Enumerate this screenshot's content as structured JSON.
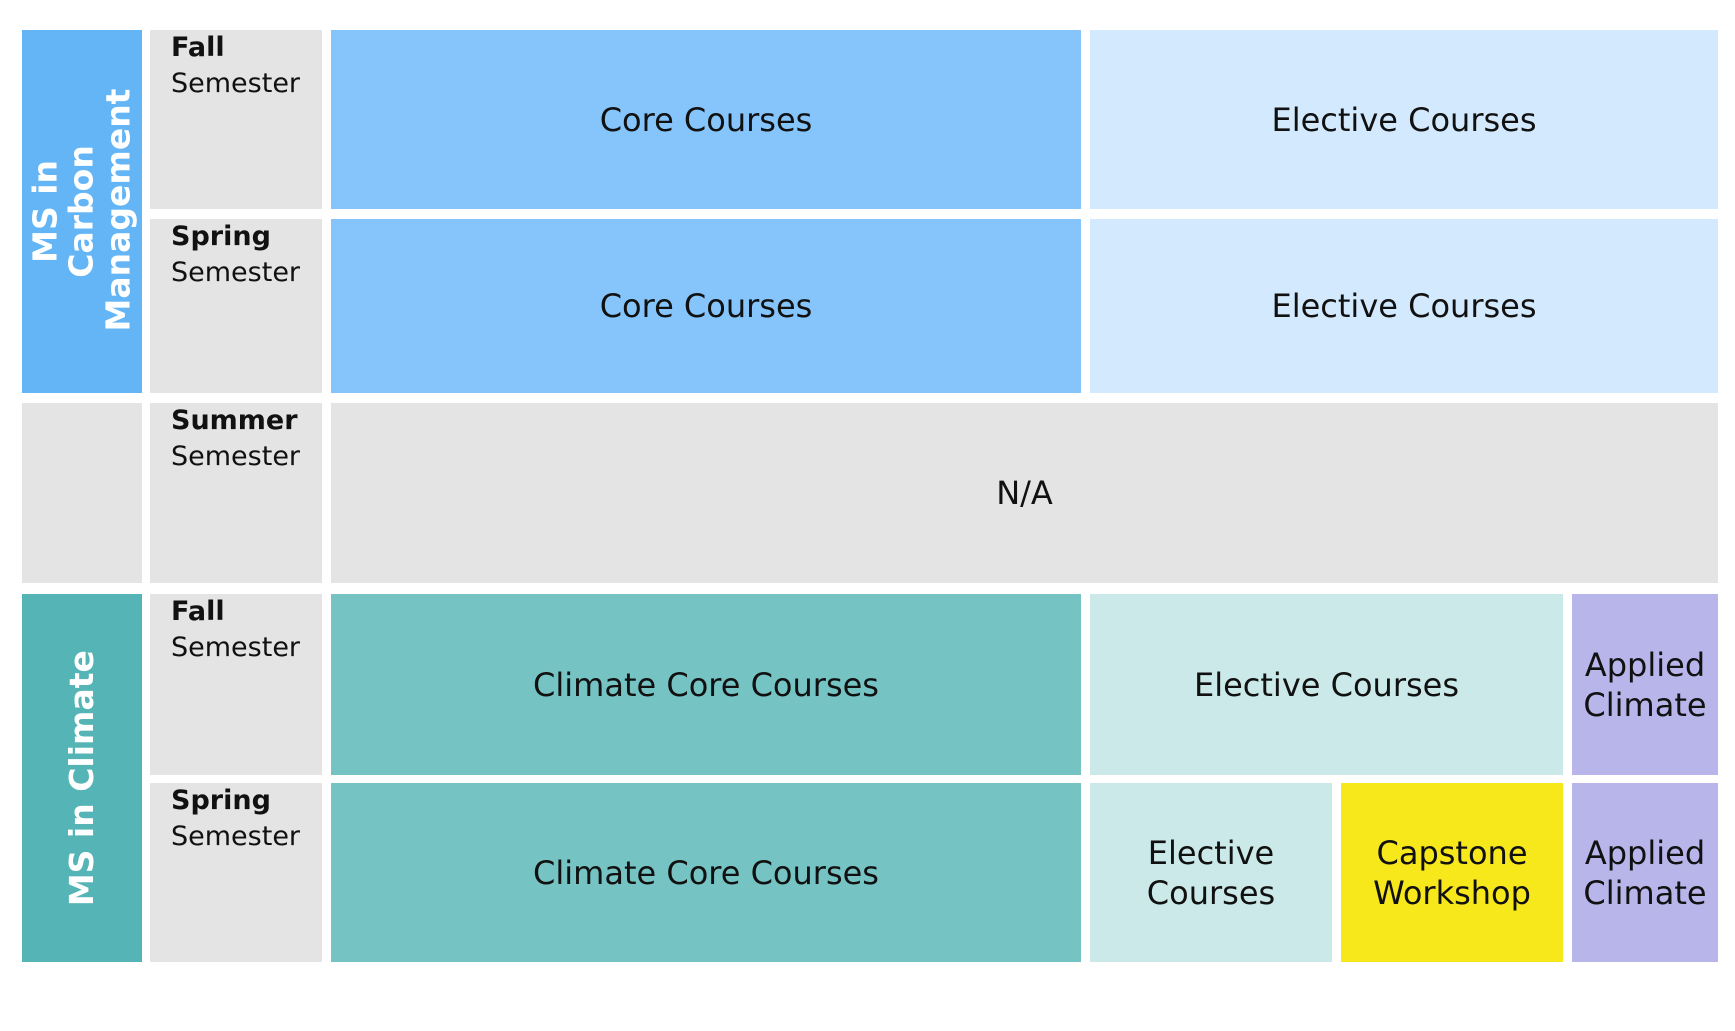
{
  "colors": {
    "carbon_program": "#64b5f6",
    "carbon_core": "#85c5fc",
    "carbon_elective": "#d3e9fd",
    "neutral": "#e4e4e4",
    "climate_program": "#55b4b5",
    "climate_core": "#76c3c4",
    "climate_elective": "#cae9e8",
    "applied": "#b8b5ea",
    "capstone": "#f7e81c"
  },
  "programs": {
    "carbon": "MS in Carbon Management",
    "climate": "MS in Climate"
  },
  "semesters": {
    "carbon_fall": {
      "name": "Fall",
      "label": "Semester"
    },
    "carbon_spring": {
      "name": "Spring",
      "label": "Semester"
    },
    "summer": {
      "name": "Summer",
      "label": "Semester"
    },
    "climate_fall": {
      "name": "Fall",
      "label": "Semester"
    },
    "climate_spring": {
      "name": "Spring",
      "label": "Semester"
    }
  },
  "cells": {
    "carbon_fall_core": "Core Courses",
    "carbon_fall_elective": "Elective Courses",
    "carbon_spring_core": "Core Courses",
    "carbon_spring_elective": "Elective Courses",
    "summer": "N/A",
    "climate_fall_core": "Climate Core Courses",
    "climate_fall_elective": "Elective Courses",
    "climate_fall_applied": "Applied Climate",
    "climate_spring_core": "Climate Core Courses",
    "climate_spring_elective": "Elective Courses",
    "climate_spring_capstone": "Capstone Workshop",
    "climate_spring_applied": "Applied Climate"
  }
}
